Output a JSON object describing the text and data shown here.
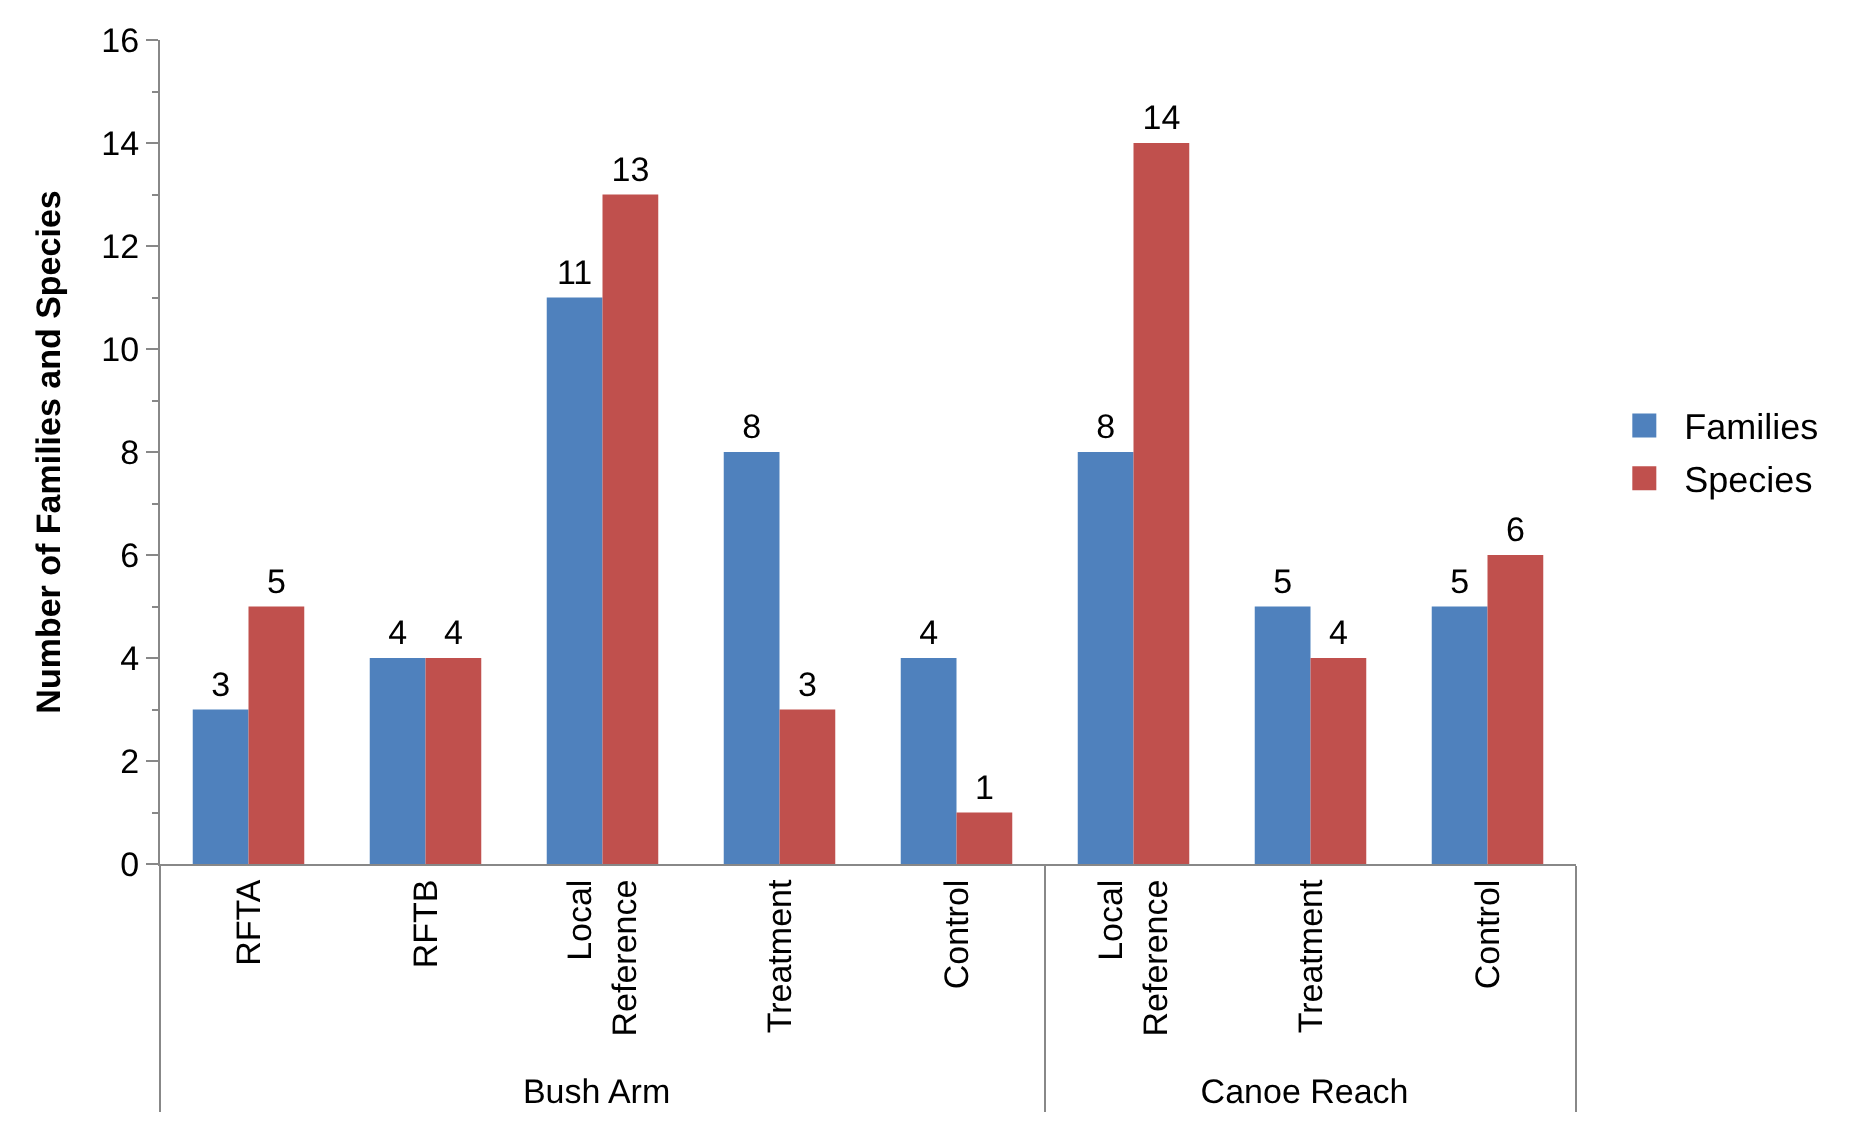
{
  "chart_data": {
    "type": "bar",
    "ylabel": "Number of Families and Species",
    "categories": [
      [
        "Bush Arm",
        "RFTA"
      ],
      [
        null,
        "RFTB"
      ],
      [
        null,
        "Local Reference"
      ],
      [
        null,
        "Treatment"
      ],
      [
        null,
        "Control"
      ],
      [
        "Canoe Reach",
        "Local Reference"
      ],
      [
        null,
        "Treatment"
      ],
      [
        null,
        "Control"
      ]
    ],
    "series": [
      {
        "name": "Families",
        "color": "#4f81bd",
        "values": [
          3,
          4,
          11,
          8,
          4,
          8,
          5,
          5
        ]
      },
      {
        "name": "Species",
        "color": "#c0504d",
        "values": [
          5,
          4,
          13,
          3,
          1,
          14,
          4,
          6
        ]
      }
    ],
    "ylim": [
      0,
      16
    ],
    "yticks": [
      0,
      2,
      4,
      6,
      8,
      10,
      12,
      14,
      16
    ],
    "grid": false,
    "legend": "right",
    "data_labels": true
  }
}
